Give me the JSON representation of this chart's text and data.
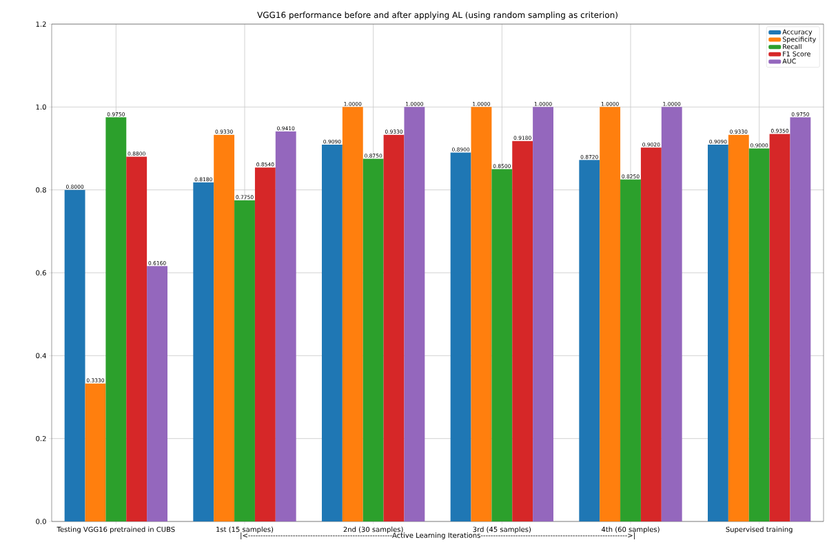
{
  "chart_data": {
    "type": "bar",
    "title": "VGG16 performance before and after applying AL (using random sampling as criterion)",
    "xlabel": "|<----------------------------------------------------------Active Learning Iterations----------------------------------------------------------->|",
    "categories": [
      "Testing VGG16 pretrained in CUBS",
      "1st (15 samples)",
      "2nd (30 samples)",
      "3rd (45 samples)",
      "4th (60 samples)",
      "Supervised training"
    ],
    "series": [
      {
        "name": "Accuracy",
        "color": "#1f77b4",
        "values": [
          0.8,
          0.818,
          0.909,
          0.89,
          0.872,
          0.909
        ],
        "value_labels": [
          "0.8000",
          "0.8180",
          "0.9090",
          "0.8900",
          "0.8720",
          "0.9090"
        ]
      },
      {
        "name": "Specificity",
        "color": "#ff7f0e",
        "values": [
          0.333,
          0.933,
          1.0,
          1.0,
          1.0,
          0.933
        ],
        "value_labels": [
          "0.3330",
          "0.9330",
          "1.0000",
          "1.0000",
          "1.0000",
          "0.9330"
        ]
      },
      {
        "name": "Recall",
        "color": "#2ca02c",
        "values": [
          0.975,
          0.775,
          0.875,
          0.85,
          0.825,
          0.9
        ],
        "value_labels": [
          "0.9750",
          "0.7750",
          "0.8750",
          "0.8500",
          "0.8250",
          "0.9000"
        ]
      },
      {
        "name": "F1 Score",
        "color": "#d62728",
        "values": [
          0.88,
          0.854,
          0.933,
          0.918,
          0.902,
          0.935
        ],
        "value_labels": [
          "0.8800",
          "0.8540",
          "0.9330",
          "0.9180",
          "0.9020",
          "0.9350"
        ]
      },
      {
        "name": "AUC",
        "color": "#9467bd",
        "values": [
          0.616,
          0.941,
          1.0,
          1.0,
          1.0,
          0.975
        ],
        "value_labels": [
          "0.6160",
          "0.9410",
          "1.0000",
          "1.0000",
          "1.0000",
          "0.9750"
        ]
      }
    ],
    "ylim": [
      0,
      1.2
    ],
    "yticks": [
      {
        "value": 0,
        "label": "0.0"
      },
      {
        "value": 0.2,
        "label": "0.2"
      },
      {
        "value": 0.4,
        "label": "0.4"
      },
      {
        "value": 0.6,
        "label": "0.6"
      },
      {
        "value": 0.8,
        "label": "0.8"
      },
      {
        "value": 1.0,
        "label": "1.0"
      },
      {
        "value": 1.2,
        "label": "1.2"
      }
    ],
    "grid": true,
    "legend": "top right"
  }
}
